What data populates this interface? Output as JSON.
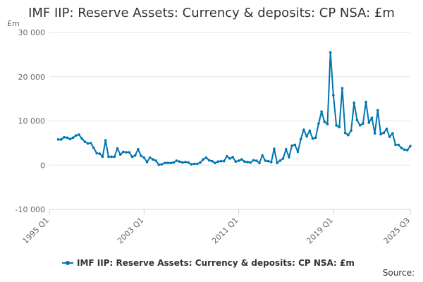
{
  "title": "IMF IIP: Reserve Assets: Currency & deposits: CP NSA: £m",
  "source": "Source:",
  "colors": {
    "series": "#0075b0",
    "grid": "#e6e6e6",
    "axis": "#ccd6eb"
  },
  "chart_data": {
    "type": "line",
    "title": "IMF IIP: Reserve Assets: Currency & deposits: CP NSA: £m",
    "unit_label": "£m",
    "ylim": [
      -10000,
      30000
    ],
    "y_ticks": [
      30000,
      20000,
      10000,
      0,
      -10000
    ],
    "y_tick_labels": [
      "30 000",
      "20 000",
      "10 000",
      "0",
      "-10 000"
    ],
    "x_ticks": [
      "1995 Q1",
      "2003 Q1",
      "2011 Q1",
      "2019 Q1",
      "2025 Q3"
    ],
    "x_start": "1995 Q1",
    "x_end": "2025 Q3",
    "grid": true,
    "legend": "bottom-center",
    "series": [
      {
        "name": "IMF IIP: Reserve Assets: Currency & deposits: CP NSA: £m",
        "x": [
          "1995 Q4",
          "1996 Q1",
          "1996 Q2",
          "1996 Q3",
          "1996 Q4",
          "1997 Q1",
          "1997 Q2",
          "1997 Q3",
          "1997 Q4",
          "1998 Q1",
          "1998 Q2",
          "1998 Q3",
          "1998 Q4",
          "1999 Q1",
          "1999 Q2",
          "1999 Q3",
          "1999 Q4",
          "2000 Q1",
          "2000 Q2",
          "2000 Q3",
          "2000 Q4",
          "2001 Q1",
          "2001 Q2",
          "2001 Q3",
          "2001 Q4",
          "2002 Q1",
          "2002 Q2",
          "2002 Q3",
          "2002 Q4",
          "2003 Q1",
          "2003 Q2",
          "2003 Q3",
          "2003 Q4",
          "2004 Q1",
          "2004 Q2",
          "2004 Q3",
          "2004 Q4",
          "2005 Q1",
          "2005 Q2",
          "2005 Q3",
          "2005 Q4",
          "2006 Q1",
          "2006 Q2",
          "2006 Q3",
          "2006 Q4",
          "2007 Q1",
          "2007 Q2",
          "2007 Q3",
          "2007 Q4",
          "2008 Q1",
          "2008 Q2",
          "2008 Q3",
          "2008 Q4",
          "2009 Q1",
          "2009 Q2",
          "2009 Q3",
          "2009 Q4",
          "2010 Q1",
          "2010 Q2",
          "2010 Q3",
          "2010 Q4",
          "2011 Q1",
          "2011 Q2",
          "2011 Q3",
          "2011 Q4",
          "2012 Q1",
          "2012 Q2",
          "2012 Q3",
          "2012 Q4",
          "2013 Q1",
          "2013 Q2",
          "2013 Q3",
          "2013 Q4",
          "2014 Q1",
          "2014 Q2",
          "2014 Q3",
          "2014 Q4",
          "2015 Q1",
          "2015 Q2",
          "2015 Q3",
          "2015 Q4",
          "2016 Q1",
          "2016 Q2",
          "2016 Q3",
          "2016 Q4",
          "2017 Q1",
          "2017 Q2",
          "2017 Q3",
          "2017 Q4",
          "2018 Q1",
          "2018 Q2",
          "2018 Q3",
          "2018 Q4",
          "2019 Q1",
          "2019 Q2",
          "2019 Q3",
          "2019 Q4",
          "2020 Q1",
          "2020 Q2",
          "2020 Q3",
          "2020 Q4",
          "2021 Q1",
          "2021 Q2",
          "2021 Q3",
          "2021 Q4",
          "2022 Q1",
          "2022 Q2",
          "2022 Q3",
          "2022 Q4",
          "2023 Q1",
          "2023 Q2",
          "2023 Q3",
          "2023 Q4",
          "2024 Q1",
          "2024 Q2",
          "2024 Q3",
          "2024 Q4",
          "2025 Q1",
          "2025 Q2",
          "2025 Q3"
        ],
        "values": [
          5800,
          5800,
          6300,
          6200,
          5900,
          6200,
          6700,
          6900,
          6000,
          5300,
          4900,
          5000,
          3900,
          2700,
          2600,
          1900,
          5600,
          1900,
          1900,
          1900,
          3800,
          2400,
          3000,
          2900,
          2900,
          1900,
          2200,
          3600,
          2100,
          1700,
          700,
          1700,
          1300,
          1000,
          100,
          200,
          500,
          500,
          500,
          600,
          1000,
          800,
          600,
          700,
          600,
          200,
          300,
          300,
          600,
          1300,
          1700,
          1100,
          900,
          500,
          800,
          900,
          900,
          2000,
          1500,
          1800,
          800,
          1000,
          1300,
          800,
          700,
          600,
          1100,
          1000,
          500,
          2200,
          1000,
          900,
          700,
          3700,
          500,
          1000,
          1500,
          3600,
          1800,
          4400,
          4600,
          3000,
          5900,
          8000,
          6500,
          7800,
          6000,
          6200,
          9400,
          12100,
          9800,
          9300,
          25500,
          15800,
          9000,
          8600,
          17400,
          7300,
          6800,
          7800,
          14100,
          10200,
          9000,
          9400,
          14300,
          9600,
          10700,
          7200,
          12400,
          7000,
          7300,
          8200,
          6400,
          7200,
          4600,
          4600,
          3900,
          3500,
          3400,
          4300
        ]
      }
    ]
  }
}
